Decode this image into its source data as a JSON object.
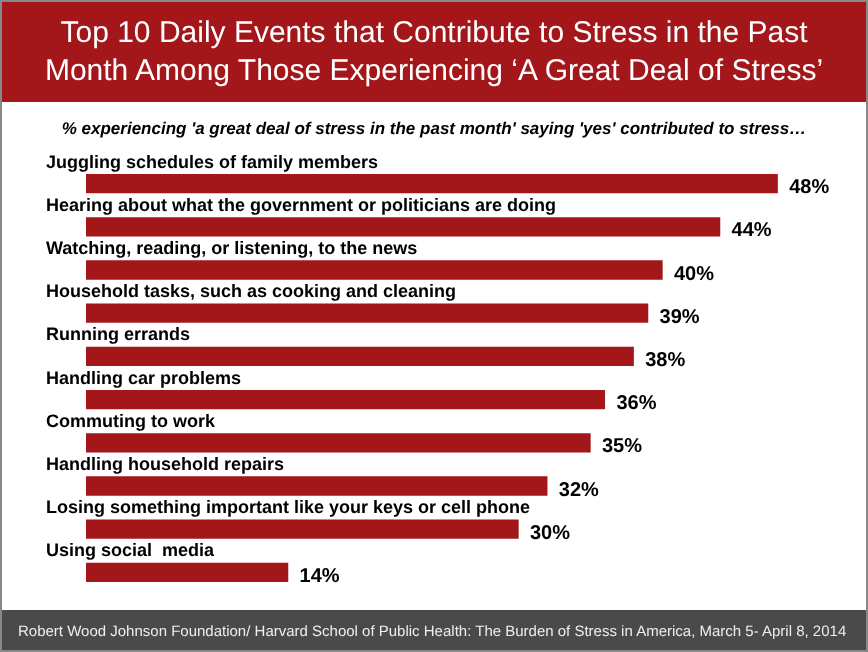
{
  "chart_data": {
    "type": "bar",
    "orientation": "horizontal",
    "title": "Top 10 Daily Events that Contribute to Stress in the Past Month Among Those Experiencing ‘A Great Deal of Stress’",
    "subtitle": "% experiencing 'a great deal of stress in the past month'  saying 'yes' contributed to stress…",
    "categories": [
      "Juggling schedules of family members",
      "Hearing about what the government or politicians are doing",
      "Watching, reading, or listening, to the news",
      "Household tasks, such as cooking and cleaning",
      "Running errands",
      "Handling car problems",
      "Commuting to work",
      "Handling household repairs",
      "Losing something important like your keys or cell phone",
      "Using social  media"
    ],
    "values": [
      48,
      44,
      40,
      39,
      38,
      36,
      35,
      32,
      30,
      14
    ],
    "value_labels": [
      "48%",
      "44%",
      "40%",
      "39%",
      "38%",
      "36%",
      "35%",
      "32%",
      "30%",
      "14%"
    ],
    "color": "#a3171b",
    "annotations": [
      "Robert Wood Johnson Foundation/ Harvard School of Public Health: The Burden of Stress in America, March 5- April 8, 2014"
    ]
  }
}
